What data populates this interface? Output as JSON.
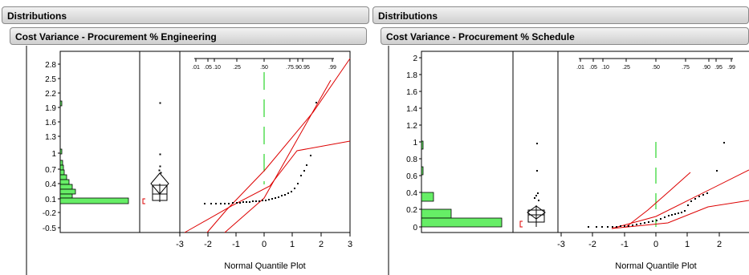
{
  "panels": [
    {
      "title": "Distributions",
      "subtitle": "Cost Variance - Procurement % Engineering",
      "histogram_ticks": [
        "2.8",
        "2.5",
        "2.2",
        "1.9",
        "1.6",
        "1.3",
        "1",
        "0.7",
        "0.4",
        "0.1",
        "-0.2",
        "-0.5"
      ],
      "quantile_top_ticks": [
        ".01",
        ".05",
        ".10",
        ".25",
        ".50",
        ".75",
        ".90",
        ".95",
        ".99"
      ],
      "quantile_bottom_ticks": [
        "-3",
        "-2",
        "-1",
        "0",
        "1",
        "2",
        "3"
      ],
      "caption": "Normal Quantile Plot"
    },
    {
      "title": "Distributions",
      "subtitle": "Cost Variance - Procurement % Schedule",
      "histogram_ticks": [
        "2",
        "1.8",
        "1.6",
        "1.4",
        "1.2",
        "1",
        "0.8",
        "0.6",
        "0.4",
        "0.2",
        "0"
      ],
      "quantile_top_ticks": [
        ".01",
        ".05",
        ".10",
        ".25",
        ".50",
        ".75",
        ".90",
        ".95",
        ".99"
      ],
      "quantile_bottom_ticks": [
        "-3",
        "-2",
        "-1",
        "0",
        "1",
        "2"
      ],
      "caption": "Normal Quantile Plot"
    }
  ],
  "colors": {
    "bar_fill": "#66ee66",
    "fit_line": "#dd0000",
    "median_line": "#00cc00",
    "points": "#000000"
  }
}
